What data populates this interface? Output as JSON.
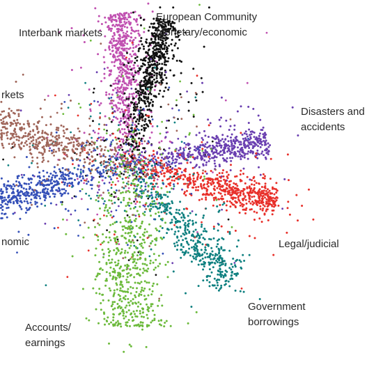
{
  "chart_data": {
    "type": "scatter",
    "title": "",
    "xlabel": "",
    "ylabel": "",
    "xlim": [
      -1,
      1
    ],
    "ylim": [
      -1,
      1
    ],
    "grid": false,
    "legend": "none",
    "center": [
      0,
      0
    ],
    "clusters": [
      {
        "label": "Interbank markets",
        "label_lines": [
          "Interbank markets"
        ],
        "color": "#c050b0",
        "dir": [
          -0.05,
          0.92
        ],
        "spread": 0.035,
        "density": 1.2
      },
      {
        "label": "European Community monetary/economic",
        "label_lines": [
          "European Community",
          "monetary/economic"
        ],
        "color": "#111111",
        "dir": [
          0.22,
          0.88
        ],
        "spread": 0.03,
        "density": 1.3
      },
      {
        "label": "Disasters and accidents",
        "label_lines": [
          "Disasters and",
          "accidents"
        ],
        "color": "#6a3fb0",
        "dir": [
          0.85,
          0.14
        ],
        "spread": 0.03,
        "density": 1.0
      },
      {
        "label": "Legal/judicial",
        "label_lines": [
          "Legal/judicial"
        ],
        "color": "#e8302a",
        "dir": [
          0.9,
          -0.24
        ],
        "spread": 0.035,
        "density": 1.2
      },
      {
        "label": "Government borrowings",
        "label_lines": [
          "Government",
          "borrowings"
        ],
        "color": "#0f8080",
        "dir": [
          0.62,
          -0.72
        ],
        "spread": 0.04,
        "density": 0.9
      },
      {
        "label": "Accounts/ earnings",
        "label_lines": [
          "Accounts/",
          "earnings"
        ],
        "color": "#6cba3c",
        "dir": [
          0.0,
          -1.0
        ],
        "spread": 0.09,
        "density": 1.1
      },
      {
        "label": "...nomic",
        "label_lines": [
          "nomic"
        ],
        "color": "#3550b8",
        "dir": [
          -0.95,
          -0.26
        ],
        "spread": 0.035,
        "density": 1.1
      },
      {
        "label": "...rkets",
        "label_lines": [
          "rkets"
        ],
        "color": "#a0665a",
        "dir": [
          -0.9,
          0.26
        ],
        "spread": 0.045,
        "density": 1.0
      }
    ]
  },
  "labels": {
    "interbank": "Interbank markets",
    "euro1": "European Community",
    "euro2": "monetary/economic",
    "disasters1": "Disasters and",
    "disasters2": "accidents",
    "legal": "Legal/judicial",
    "gov1": "Government",
    "gov2": "borrowings",
    "accounts1": "Accounts/",
    "accounts2": "earnings",
    "nomic": "nomic",
    "rkets": "rkets"
  }
}
